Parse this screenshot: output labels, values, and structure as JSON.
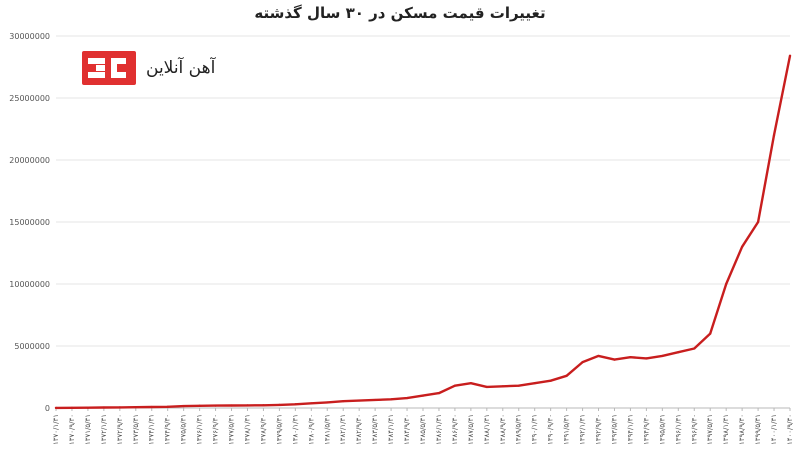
{
  "brand": {
    "name": "آهن آنلاین",
    "color": "#e03030"
  },
  "chart_data": {
    "type": "line",
    "title": "تغییرات قیمت مسکن در ۳۰ سال گذشته",
    "xlabel": "",
    "ylabel": "",
    "ylim": [
      0,
      30000000
    ],
    "yticks": [
      0,
      5000000,
      10000000,
      15000000,
      20000000,
      25000000,
      30000000
    ],
    "ytick_labels": [
      "0",
      "5000000",
      "10000000",
      "15000000",
      "20000000",
      "25000000",
      "30000000"
    ],
    "grid": "horizontal",
    "line_color": "#c81e1e",
    "x_tick_labels": [
      "۱۳۷۰/۱/۳۱",
      "۱۳۷۰/۹/۳۰",
      "۱۳۷۱/۵/۳۱",
      "۱۳۷۲/۱/۳۱",
      "۱۳۷۲/۹/۳۰",
      "۱۳۷۳/۵/۳۱",
      "۱۳۷۴/۱/۳۱",
      "۱۳۷۴/۹/۳۰",
      "۱۳۷۵/۵/۳۱",
      "۱۳۷۶/۱/۳۱",
      "۱۳۷۶/۹/۳۰",
      "۱۳۷۷/۵/۳۱",
      "۱۳۷۸/۱/۳۱",
      "۱۳۷۸/۹/۳۰",
      "۱۳۷۹/۵/۳۱",
      "۱۳۸۰/۱/۳۱",
      "۱۳۸۰/۹/۳۰",
      "۱۳۸۱/۵/۳۱",
      "۱۳۸۲/۱/۳۱",
      "۱۳۸۲/۹/۳۰",
      "۱۳۸۳/۵/۳۱",
      "۱۳۸۴/۱/۳۱",
      "۱۳۸۴/۹/۳۰",
      "۱۳۸۵/۵/۳۱",
      "۱۳۸۶/۱/۳۱",
      "۱۳۸۶/۹/۳۰",
      "۱۳۸۷/۵/۳۱",
      "۱۳۸۸/۱/۳۱",
      "۱۳۸۸/۹/۳۰",
      "۱۳۸۹/۵/۳۱",
      "۱۳۹۰/۱/۳۱",
      "۱۳۹۰/۹/۳۰",
      "۱۳۹۱/۵/۳۱",
      "۱۳۹۲/۱/۳۱",
      "۱۳۹۲/۹/۳۰",
      "۱۳۹۳/۵/۳۱",
      "۱۳۹۴/۱/۳۱",
      "۱۳۹۴/۹/۳۰",
      "۱۳۹۵/۵/۳۱",
      "۱۳۹۶/۱/۳۱",
      "۱۳۹۶/۹/۳۰",
      "۱۳۹۷/۵/۳۱",
      "۱۳۹۸/۱/۳۱",
      "۱۳۹۸/۹/۳۰",
      "۱۳۹۹/۵/۳۱",
      "۱۴۰۰/۱/۳۱",
      "۱۴۰۰/۹/۳۰"
    ],
    "series": [
      {
        "x": [
          "۱۳۷۰/۱/۳۱",
          "۱۳۷۰/۹/۳۰",
          "۱۳۷۱/۵/۳۱",
          "۱۳۷۲/۱/۳۱",
          "۱۳۷۲/۹/۳۰",
          "۱۳۷۳/۵/۳۱",
          "۱۳۷۴/۱/۳۱",
          "۱۳۷۴/۹/۳۰",
          "۱۳۷۵/۵/۳۱",
          "۱۳۷۶/۱/۳۱",
          "۱۳۷۶/۹/۳۰",
          "۱۳۷۷/۵/۳۱",
          "۱۳۷۸/۱/۳۱",
          "۱۳۷۸/۹/۳۰",
          "۱۳۷۹/۵/۳۱",
          "۱۳۸۰/۱/۳۱",
          "۱۳۸۰/۹/۳۰",
          "۱۳۸۱/۵/۳۱",
          "۱۳۸۲/۱/۳۱",
          "۱۳۸۲/۹/۳۰",
          "۱۳۸۳/۵/۳۱",
          "۱۳۸۴/۱/۳۱",
          "۱۳۸۴/۹/۳۰",
          "۱۳۸۵/۵/۳۱",
          "۱۳۸۶/۱/۳۱",
          "۱۳۸۶/۹/۳۰",
          "۱۳۸۷/۵/۳۱",
          "۱۳۸۸/۱/۳۱",
          "۱۳۸۸/۹/۳۰",
          "۱۳۸۹/۵/۳۱",
          "۱۳۹۰/۱/۳۱",
          "۱۳۹۰/۹/۳۰",
          "۱۳۹۱/۵/۳۱",
          "۱۳۹۲/۱/۳۱",
          "۱۳۹۲/۹/۳۰",
          "۱۳۹۳/۵/۳۱",
          "۱۳۹۴/۱/۳۱",
          "۱۳۹۴/۹/۳۰",
          "۱۳۹۵/۵/۳۱",
          "۱۳۹۶/۱/۳۱",
          "۱۳۹۶/۹/۳۰",
          "۱۳۹۷/۵/۳۱",
          "۱۳۹۸/۱/۳۱",
          "۱۳۹۸/۹/۳۰",
          "۱۳۹۹/۵/۳۱",
          "۱۴۰۰/۱/۳۱",
          "۱۴۰۰/۹/۳۰"
        ],
        "values": [
          10000,
          15000,
          25000,
          40000,
          50000,
          65000,
          80000,
          100000,
          150000,
          180000,
          190000,
          200000,
          210000,
          220000,
          250000,
          300000,
          380000,
          450000,
          550000,
          600000,
          650000,
          700000,
          800000,
          1000000,
          1200000,
          1800000,
          2000000,
          1700000,
          1750000,
          1800000,
          2000000,
          2200000,
          2600000,
          3700000,
          4200000,
          3900000,
          4100000,
          4000000,
          4200000,
          4500000,
          4800000,
          6000000,
          10000000,
          13000000,
          15000000,
          22000000,
          28400000
        ]
      }
    ]
  }
}
